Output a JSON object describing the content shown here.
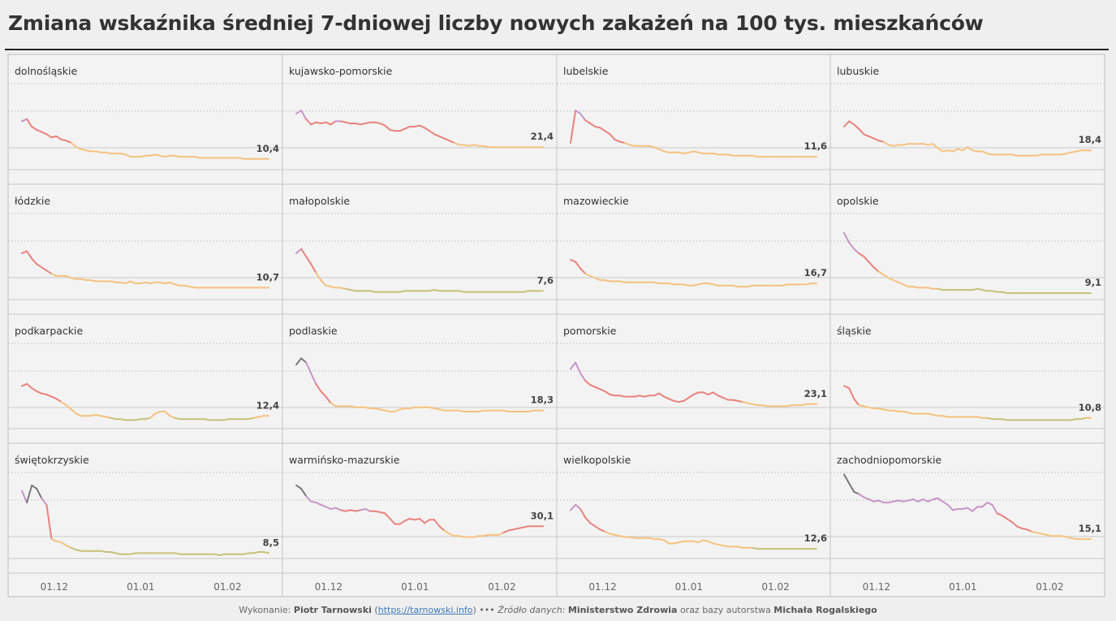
{
  "title": "Zmiana wskaźnika średniej 7-dniowej liczby nowych zakażeń na 100 tys. mieszkańców",
  "footer": {
    "made_by_label": "Wykonanie:",
    "author": "Piotr Tarnowski",
    "link": "https://tarnowski.info",
    "separator": "•••",
    "source_label": "Źródło danych:",
    "source": "Ministerstwo Zdrowia",
    "source_mid": "oraz bazy autorstwa",
    "source_author": "Michała Rogalskiego"
  },
  "colors": {
    "purple": "#c994c7",
    "red": "#e9827c",
    "orange": "#f5c27f",
    "green": "#c5c27a",
    "dark": "#777777",
    "grid": "#c8c8c8",
    "label": "#333333"
  },
  "chart_data": {
    "type": "line",
    "x_ticks": [
      "01.12",
      "01.01",
      "01.02"
    ],
    "panels": [
      {
        "name": "dolnośląskie",
        "last_label": "10,4",
        "values": [
          45,
          47,
          40,
          37,
          35,
          33,
          30,
          31,
          28,
          27,
          25,
          21,
          19,
          18,
          17,
          17,
          16,
          16,
          15,
          15,
          15,
          14,
          12,
          12,
          12,
          13,
          13,
          14,
          13,
          12,
          13,
          13,
          12,
          12,
          12,
          12,
          11,
          11,
          11,
          11,
          11,
          11,
          11,
          11,
          11,
          10,
          10,
          10,
          10,
          10,
          10
        ]
      },
      {
        "name": "kujawsko-pomorskie",
        "last_label": "21,4",
        "values": [
          52,
          55,
          47,
          42,
          44,
          43,
          44,
          42,
          45,
          45,
          44,
          43,
          43,
          42,
          43,
          44,
          44,
          43,
          41,
          37,
          36,
          36,
          38,
          40,
          40,
          41,
          39,
          36,
          33,
          31,
          29,
          27,
          25,
          23,
          23,
          22,
          23,
          22,
          22,
          21,
          21,
          21,
          21,
          21,
          21,
          21,
          21,
          21,
          21,
          21,
          21
        ]
      },
      {
        "name": "lubelskie",
        "last_label": "11,6",
        "values": [
          25,
          55,
          52,
          46,
          43,
          40,
          39,
          36,
          33,
          28,
          26,
          25,
          23,
          22,
          22,
          22,
          22,
          21,
          19,
          17,
          16,
          16,
          16,
          15,
          16,
          17,
          16,
          15,
          15,
          15,
          14,
          14,
          14,
          13,
          13,
          13,
          13,
          13,
          12,
          12,
          12,
          12,
          12,
          12,
          12,
          12,
          12,
          12,
          12,
          12,
          12
        ]
      },
      {
        "name": "lubuskie",
        "last_label": "18,4",
        "values": [
          40,
          45,
          42,
          38,
          33,
          31,
          29,
          27,
          26,
          23,
          22,
          23,
          23,
          24,
          24,
          24,
          24,
          23,
          24,
          20,
          17,
          18,
          17,
          19,
          18,
          21,
          18,
          17,
          17,
          15,
          14,
          14,
          14,
          14,
          14,
          13,
          13,
          13,
          13,
          13,
          14,
          14,
          14,
          14,
          14,
          15,
          16,
          17,
          18,
          18,
          18
        ]
      },
      {
        "name": "łódzkie",
        "last_label": "10,7",
        "values": [
          43,
          45,
          38,
          33,
          30,
          27,
          24,
          22,
          22,
          22,
          20,
          19,
          19,
          18,
          18,
          17,
          17,
          17,
          17,
          16,
          16,
          15,
          17,
          15,
          15,
          16,
          15,
          16,
          16,
          15,
          16,
          14,
          13,
          13,
          12,
          11,
          11,
          11,
          11,
          11,
          11,
          11,
          11,
          11,
          11,
          11,
          11,
          11,
          11,
          11,
          11
        ]
      },
      {
        "name": "małopolskie",
        "last_label": "7,6",
        "values": [
          43,
          47,
          40,
          33,
          25,
          18,
          13,
          12,
          11,
          11,
          10,
          9,
          8,
          8,
          8,
          8,
          7,
          7,
          7,
          7,
          7,
          7,
          8,
          8,
          8,
          8,
          8,
          8,
          9,
          8,
          8,
          8,
          8,
          8,
          7,
          7,
          7,
          7,
          7,
          7,
          7,
          7,
          7,
          7,
          7,
          7,
          7,
          8,
          8,
          8,
          8
        ]
      },
      {
        "name": "mazowieckie",
        "last_label": "16,7",
        "values": [
          37,
          35,
          29,
          24,
          22,
          20,
          18,
          18,
          17,
          17,
          17,
          16,
          16,
          16,
          16,
          16,
          16,
          16,
          15,
          15,
          15,
          14,
          14,
          14,
          13,
          13,
          14,
          15,
          15,
          14,
          13,
          13,
          13,
          13,
          12,
          12,
          12,
          13,
          13,
          13,
          13,
          13,
          13,
          13,
          14,
          14,
          14,
          14,
          14,
          15,
          15
        ]
      },
      {
        "name": "opolskie",
        "last_label": "9,1",
        "values": [
          62,
          53,
          47,
          43,
          40,
          35,
          30,
          26,
          23,
          20,
          18,
          16,
          14,
          12,
          12,
          11,
          11,
          11,
          10,
          10,
          9,
          9,
          9,
          9,
          9,
          9,
          9,
          10,
          9,
          8,
          8,
          7,
          7,
          6,
          6,
          6,
          6,
          6,
          6,
          6,
          6,
          6,
          6,
          6,
          6,
          6,
          6,
          6,
          6,
          6,
          6
        ]
      },
      {
        "name": "podkarpackie",
        "last_label": "12,4",
        "values": [
          40,
          42,
          38,
          35,
          33,
          32,
          30,
          28,
          25,
          22,
          18,
          14,
          12,
          12,
          12,
          13,
          12,
          11,
          10,
          9,
          9,
          8,
          8,
          8,
          9,
          9,
          10,
          14,
          16,
          16,
          12,
          10,
          9,
          9,
          9,
          9,
          9,
          9,
          8,
          8,
          8,
          8,
          9,
          9,
          9,
          9,
          9,
          10,
          11,
          12,
          12
        ]
      },
      {
        "name": "podlaskie",
        "last_label": "18,3",
        "values": [
          60,
          66,
          62,
          52,
          42,
          35,
          30,
          24,
          21,
          21,
          21,
          21,
          20,
          20,
          20,
          19,
          19,
          18,
          17,
          16,
          16,
          18,
          19,
          19,
          20,
          20,
          20,
          20,
          19,
          18,
          17,
          17,
          17,
          17,
          16,
          16,
          16,
          16,
          17,
          17,
          17,
          17,
          17,
          16,
          16,
          16,
          16,
          16,
          17,
          17,
          17
        ]
      },
      {
        "name": "pomorskie",
        "last_label": "23,1",
        "values": [
          56,
          62,
          52,
          45,
          41,
          39,
          37,
          35,
          32,
          31,
          31,
          30,
          30,
          30,
          31,
          30,
          31,
          31,
          33,
          30,
          28,
          26,
          25,
          26,
          29,
          32,
          34,
          34,
          32,
          34,
          31,
          29,
          27,
          27,
          26,
          25,
          24,
          23,
          22,
          22,
          21,
          21,
          21,
          21,
          21,
          22,
          22,
          22,
          23,
          23,
          23
        ]
      },
      {
        "name": "śląskie",
        "last_label": "10,8",
        "values": [
          40,
          38,
          28,
          22,
          21,
          20,
          19,
          19,
          18,
          17,
          17,
          16,
          16,
          15,
          14,
          14,
          14,
          14,
          13,
          12,
          12,
          11,
          11,
          11,
          11,
          11,
          11,
          11,
          10,
          10,
          9,
          9,
          9,
          8,
          8,
          8,
          8,
          8,
          8,
          8,
          8,
          8,
          8,
          8,
          8,
          8,
          8,
          9,
          9,
          10,
          10
        ]
      },
      {
        "name": "świętokrzyskie",
        "last_label": "8,5",
        "values": [
          63,
          52,
          68,
          65,
          56,
          50,
          18,
          16,
          15,
          12,
          10,
          8,
          7,
          7,
          7,
          7,
          7,
          6,
          6,
          5,
          4,
          4,
          4,
          5,
          5,
          5,
          5,
          5,
          5,
          5,
          5,
          5,
          4,
          4,
          4,
          4,
          4,
          4,
          4,
          4,
          3,
          4,
          4,
          4,
          4,
          4,
          5,
          5,
          6,
          6,
          5
        ]
      },
      {
        "name": "warmińsko-mazurskie",
        "last_label": "30,1",
        "values": [
          68,
          65,
          58,
          53,
          52,
          50,
          48,
          46,
          47,
          45,
          44,
          45,
          44,
          45,
          46,
          44,
          44,
          43,
          42,
          37,
          32,
          32,
          35,
          37,
          36,
          37,
          33,
          36,
          36,
          30,
          26,
          23,
          21,
          21,
          20,
          20,
          20,
          21,
          21,
          22,
          22,
          22,
          24,
          26,
          27,
          28,
          29,
          30,
          30,
          30,
          30
        ]
      },
      {
        "name": "wielkopolskie",
        "last_label": "12,6",
        "values": [
          45,
          50,
          46,
          38,
          33,
          30,
          27,
          25,
          23,
          22,
          21,
          20,
          20,
          19,
          19,
          19,
          19,
          18,
          18,
          17,
          14,
          14,
          15,
          16,
          16,
          16,
          15,
          17,
          16,
          14,
          13,
          12,
          11,
          11,
          11,
          10,
          10,
          10,
          9,
          9,
          9,
          9,
          9,
          9,
          9,
          9,
          9,
          9,
          9,
          9,
          9
        ]
      },
      {
        "name": "zachodniopomorskie",
        "last_label": "15,1",
        "values": [
          78,
          70,
          62,
          60,
          57,
          55,
          53,
          54,
          52,
          52,
          53,
          54,
          53,
          54,
          55,
          53,
          55,
          53,
          55,
          56,
          53,
          50,
          45,
          46,
          46,
          47,
          44,
          48,
          48,
          52,
          50,
          42,
          40,
          37,
          34,
          30,
          28,
          27,
          25,
          24,
          23,
          22,
          21,
          21,
          21,
          20,
          19,
          18,
          18,
          18,
          18
        ]
      }
    ]
  }
}
